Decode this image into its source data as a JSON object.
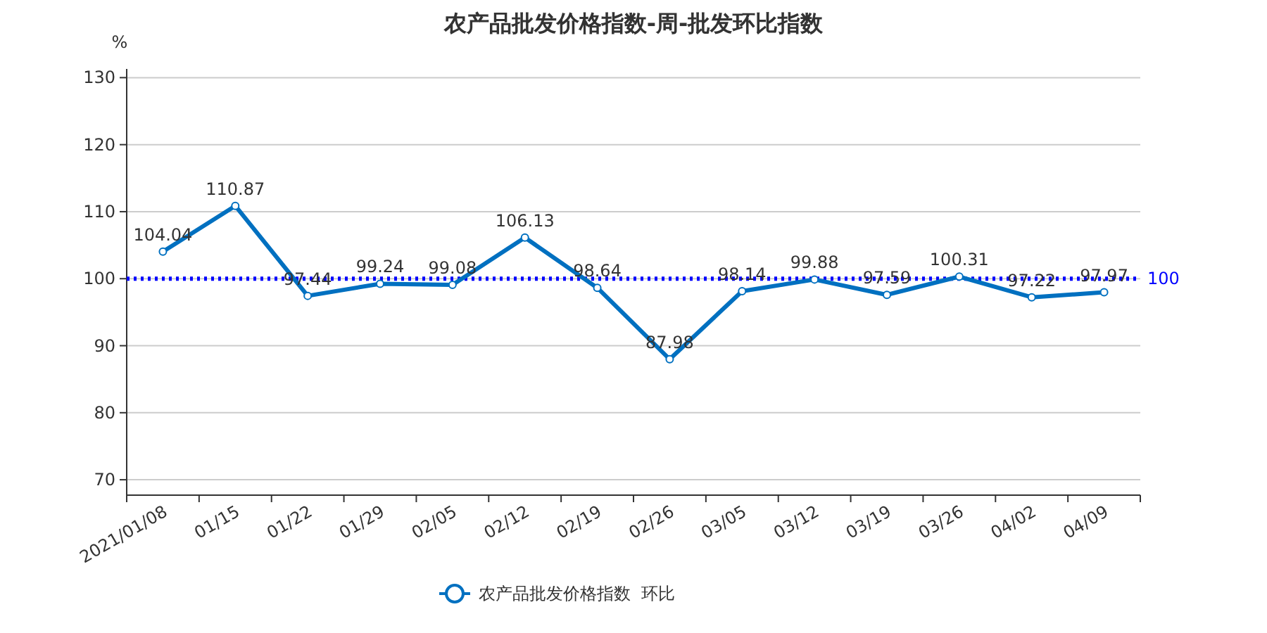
{
  "chart_data": {
    "type": "line",
    "title": "农产品批发价格指数-周-批发环比指数",
    "ylabel": "%",
    "categories": [
      "2021/01/08",
      "01/15",
      "01/22",
      "01/29",
      "02/05",
      "02/12",
      "02/19",
      "02/26",
      "03/05",
      "03/12",
      "03/19",
      "03/26",
      "04/02",
      "04/09"
    ],
    "series": [
      {
        "name": "农产品批发价格指数  环比",
        "color": "#0070c0",
        "values": [
          104.04,
          110.87,
          97.44,
          99.24,
          99.08,
          106.13,
          98.64,
          87.98,
          98.14,
          99.88,
          97.59,
          100.31,
          97.22,
          97.97
        ]
      }
    ],
    "ylim": [
      67.7,
      131.3
    ],
    "yticks": [
      70,
      80,
      90,
      100,
      110,
      120,
      130
    ],
    "ref_lines": [
      {
        "axis": "y",
        "value": 100,
        "label": "100",
        "color": "#0000ff",
        "line_style": "dotted"
      }
    ],
    "data_labels": true,
    "grid": "y",
    "legend": "bottom",
    "marker": "circle",
    "line_style": "solid"
  }
}
